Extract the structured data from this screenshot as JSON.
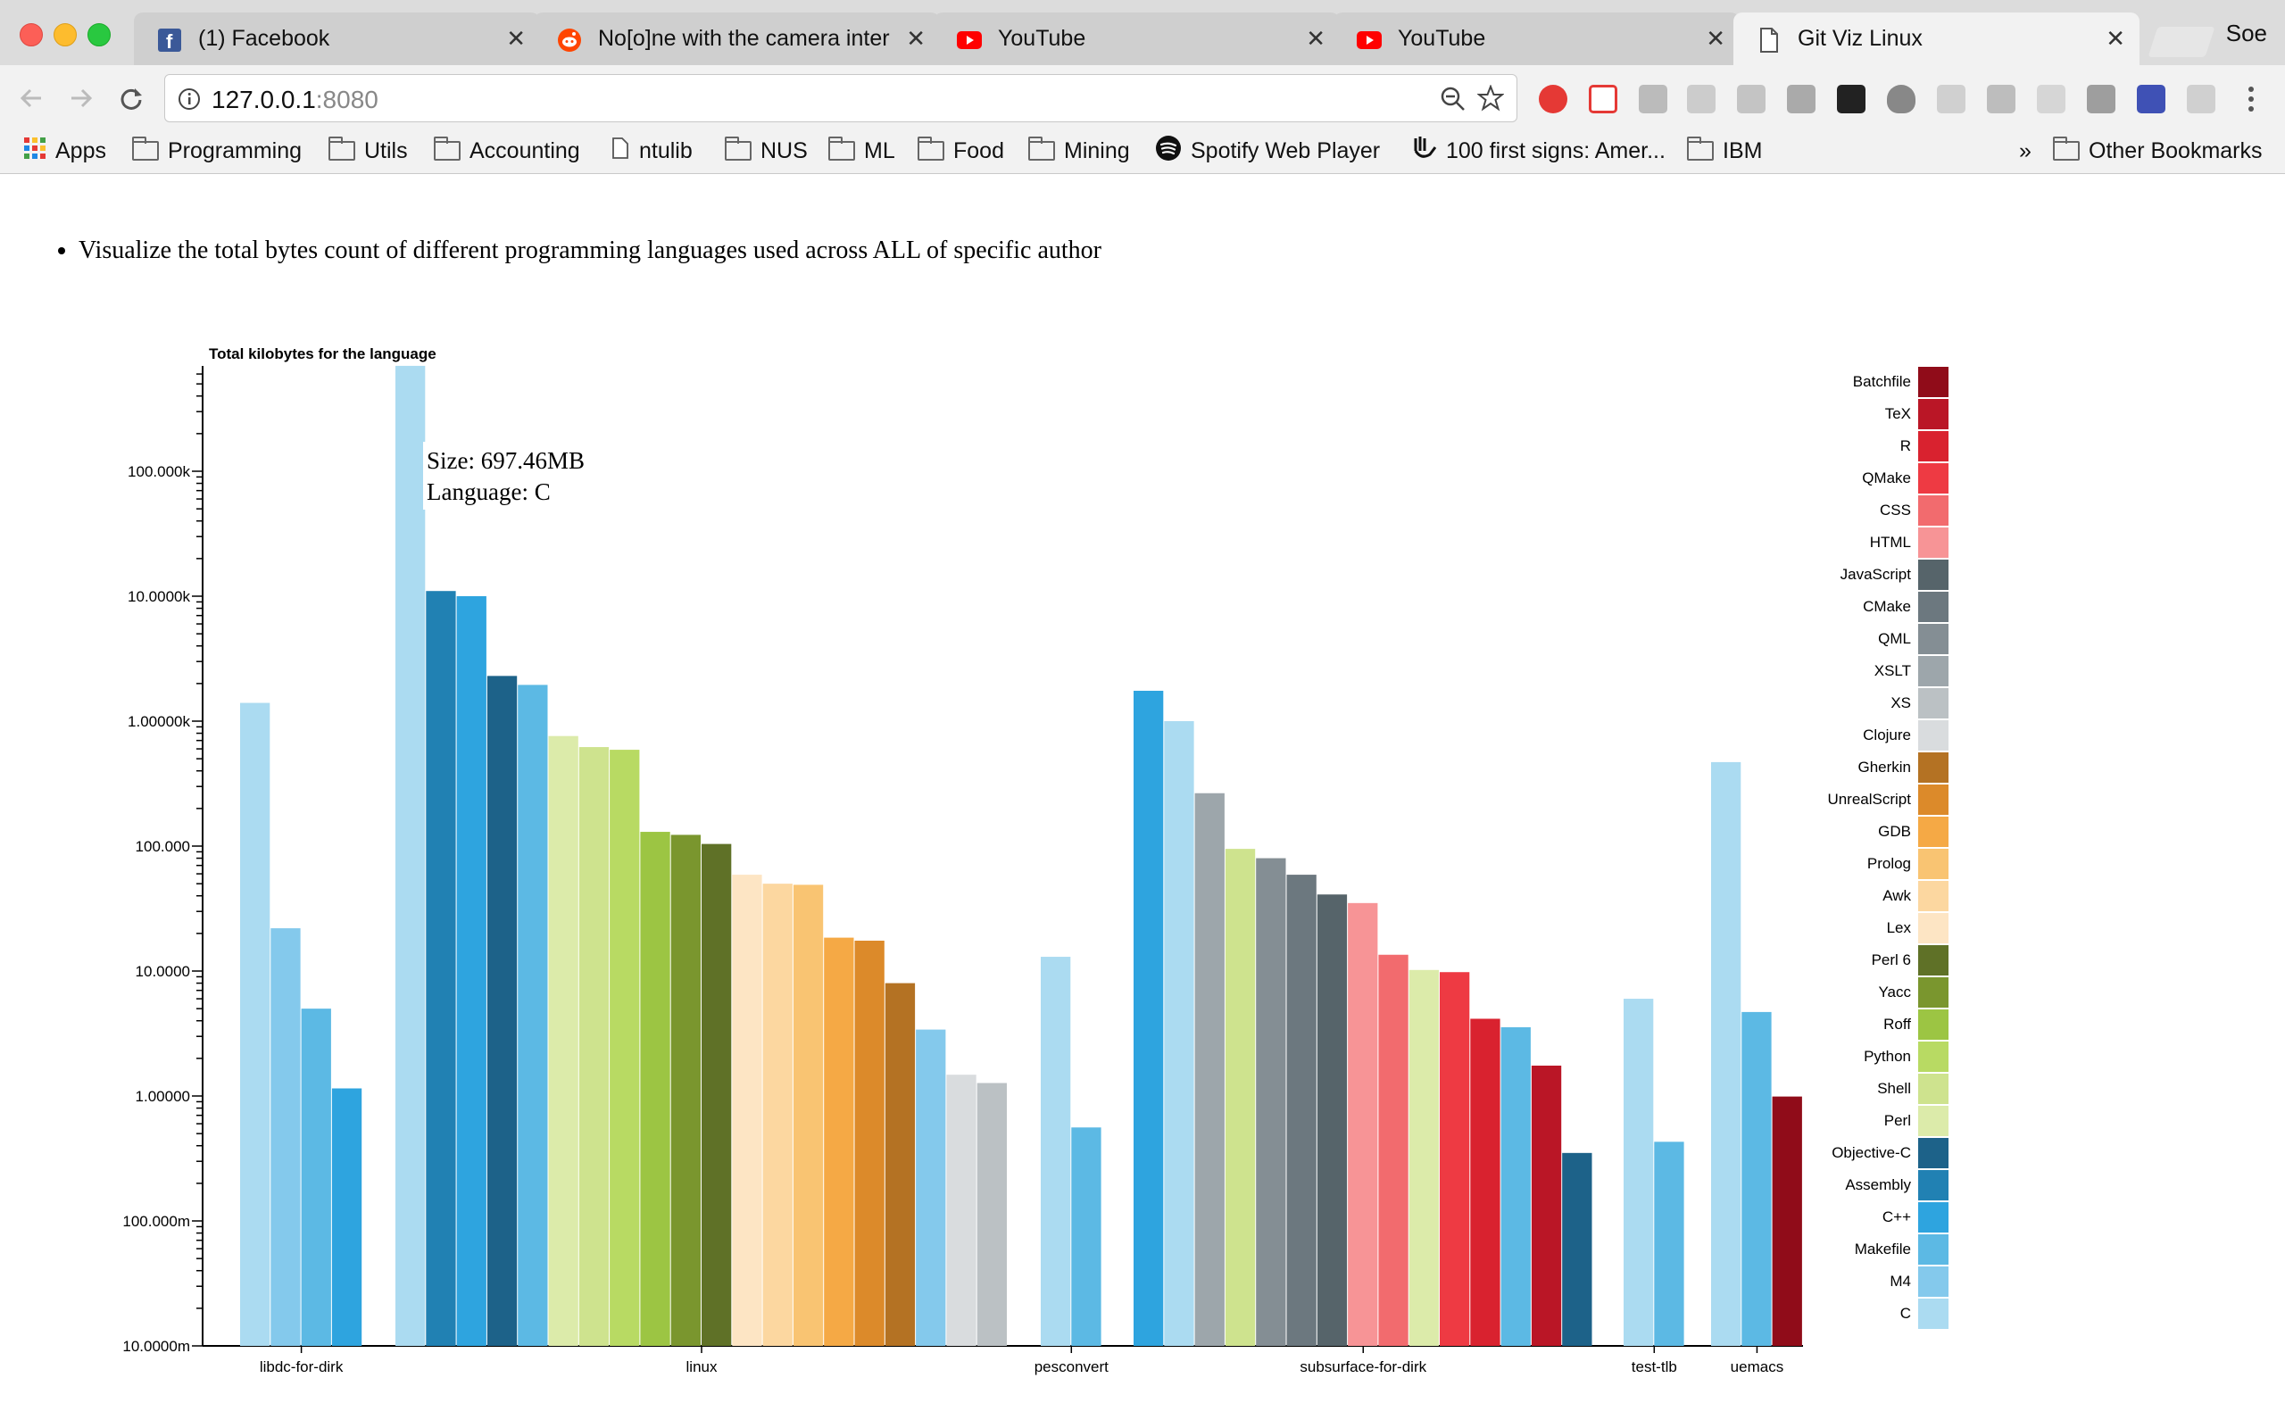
{
  "browser": {
    "tabs": [
      {
        "title": "(1) Facebook",
        "icon": "facebook-icon",
        "color": "#3b5998"
      },
      {
        "title": "No[o]ne with the camera inter",
        "icon": "reddit-icon",
        "color": "#ff4500"
      },
      {
        "title": "YouTube",
        "icon": "youtube-icon",
        "color": "#ff0000"
      },
      {
        "title": "YouTube",
        "icon": "youtube-icon",
        "color": "#ff0000"
      },
      {
        "title": "Git Viz Linux",
        "icon": "page-icon",
        "color": "#666666"
      }
    ],
    "active_tab": 4,
    "profile_name": "Soe",
    "url_host": "127.0.0.1",
    "url_port": ":8080",
    "bookmarks": [
      {
        "label": "Apps",
        "icon": "apps-grid-icon"
      },
      {
        "label": "Programming",
        "icon": "folder-icon"
      },
      {
        "label": "Utils",
        "icon": "folder-icon"
      },
      {
        "label": "Accounting",
        "icon": "folder-icon"
      },
      {
        "label": "ntulib",
        "icon": "page-icon"
      },
      {
        "label": "NUS",
        "icon": "folder-icon"
      },
      {
        "label": "ML",
        "icon": "folder-icon"
      },
      {
        "label": "Food",
        "icon": "folder-icon"
      },
      {
        "label": "Mining",
        "icon": "folder-icon"
      },
      {
        "label": "Spotify Web Player",
        "icon": "spotify-icon"
      },
      {
        "label": "100 first signs: Amer...",
        "icon": "sign-icon"
      },
      {
        "label": "IBM",
        "icon": "folder-icon"
      }
    ],
    "overflow_chevron": "»",
    "other_bookmarks": "Other Bookmarks"
  },
  "page": {
    "intro_bullet": "Visualize the total bytes count of different programming languages used across ALL of specific author"
  },
  "chart_data": {
    "type": "bar",
    "title": "Total kilobytes for the language",
    "ylabel": "Total kilobytes for the language",
    "y_scale": "log",
    "ylim": [
      0.01,
      1000000
    ],
    "y_tick_labels": [
      "10.0000m",
      "100.000m",
      "1.00000",
      "10.0000",
      "100.000",
      "1.00000k",
      "10.0000k",
      "100.000k"
    ],
    "y_tick_values": [
      0.01,
      0.1,
      1,
      10,
      100,
      1000,
      10000,
      100000
    ],
    "categories": [
      "libdc-for-dirk",
      "linux",
      "pesconvert",
      "subsurface-for-dirk",
      "test-tlb",
      "uemacs"
    ],
    "legend": [
      {
        "name": "Batchfile",
        "color": "#900c19"
      },
      {
        "name": "TeX",
        "color": "#ba1626"
      },
      {
        "name": "R",
        "color": "#d9222f"
      },
      {
        "name": "QMake",
        "color": "#ee3a43"
      },
      {
        "name": "CSS",
        "color": "#f26b6e"
      },
      {
        "name": "HTML",
        "color": "#f79496"
      },
      {
        "name": "JavaScript",
        "color": "#56646a"
      },
      {
        "name": "CMake",
        "color": "#6c787f"
      },
      {
        "name": "QML",
        "color": "#848e94"
      },
      {
        "name": "XSLT",
        "color": "#9da6ab"
      },
      {
        "name": "XS",
        "color": "#bbc1c4"
      },
      {
        "name": "Clojure",
        "color": "#d9dcde"
      },
      {
        "name": "Gherkin",
        "color": "#b47223"
      },
      {
        "name": "UnrealScript",
        "color": "#dc8a2a"
      },
      {
        "name": "GDB",
        "color": "#f5a945"
      },
      {
        "name": "Prolog",
        "color": "#f9c472"
      },
      {
        "name": "Awk",
        "color": "#fcd7a0"
      },
      {
        "name": "Lex",
        "color": "#fde5c4"
      },
      {
        "name": "Perl 6",
        "color": "#5f7127"
      },
      {
        "name": "Yacc",
        "color": "#7a962e"
      },
      {
        "name": "Roff",
        "color": "#9cc543"
      },
      {
        "name": "Python",
        "color": "#b8da63"
      },
      {
        "name": "Shell",
        "color": "#cee38e"
      },
      {
        "name": "Perl",
        "color": "#dcebaa"
      },
      {
        "name": "Objective-C",
        "color": "#1d6289"
      },
      {
        "name": "Assembly",
        "color": "#2181b3"
      },
      {
        "name": "C++",
        "color": "#2ea4df"
      },
      {
        "name": "Makefile",
        "color": "#5cb9e4"
      },
      {
        "name": "M4",
        "color": "#84c9ec"
      },
      {
        "name": "C",
        "color": "#abdbf1"
      }
    ],
    "series": [
      {
        "project": "libdc-for-dirk",
        "bars": [
          {
            "lang": "C",
            "value": 1400
          },
          {
            "lang": "M4",
            "value": 22
          },
          {
            "lang": "Makefile",
            "value": 5
          },
          {
            "lang": "C++",
            "value": 1.15
          }
        ]
      },
      {
        "project": "linux",
        "bars": [
          {
            "lang": "C",
            "value": 697460
          },
          {
            "lang": "Assembly",
            "value": 11000
          },
          {
            "lang": "C++",
            "value": 10000
          },
          {
            "lang": "Objective-C",
            "value": 2300
          },
          {
            "lang": "Makefile",
            "value": 1950
          },
          {
            "lang": "Perl",
            "value": 760
          },
          {
            "lang": "Shell",
            "value": 620
          },
          {
            "lang": "Python",
            "value": 590
          },
          {
            "lang": "Roff",
            "value": 130
          },
          {
            "lang": "Yacc",
            "value": 123
          },
          {
            "lang": "Perl 6",
            "value": 104
          },
          {
            "lang": "Lex",
            "value": 59
          },
          {
            "lang": "Awk",
            "value": 50
          },
          {
            "lang": "Prolog",
            "value": 49
          },
          {
            "lang": "GDB",
            "value": 18.5
          },
          {
            "lang": "UnrealScript",
            "value": 17.5
          },
          {
            "lang": "Gherkin",
            "value": 8
          },
          {
            "lang": "M4",
            "value": 3.4
          },
          {
            "lang": "Clojure",
            "value": 1.48
          },
          {
            "lang": "XS",
            "value": 1.27
          }
        ]
      },
      {
        "project": "pesconvert",
        "bars": [
          {
            "lang": "C",
            "value": 13
          },
          {
            "lang": "Makefile",
            "value": 0.56
          }
        ]
      },
      {
        "project": "subsurface-for-dirk",
        "bars": [
          {
            "lang": "C++",
            "value": 1750
          },
          {
            "lang": "C",
            "value": 1000
          },
          {
            "lang": "XSLT",
            "value": 265
          },
          {
            "lang": "Shell",
            "value": 95
          },
          {
            "lang": "QML",
            "value": 80
          },
          {
            "lang": "CMake",
            "value": 59
          },
          {
            "lang": "JavaScript",
            "value": 41
          },
          {
            "lang": "HTML",
            "value": 35
          },
          {
            "lang": "CSS",
            "value": 13.5
          },
          {
            "lang": "Perl",
            "value": 10.2
          },
          {
            "lang": "QMake",
            "value": 9.8
          },
          {
            "lang": "R",
            "value": 4.15
          },
          {
            "lang": "Makefile",
            "value": 3.55
          },
          {
            "lang": "TeX",
            "value": 1.75
          },
          {
            "lang": "Objective-C",
            "value": 0.35
          }
        ]
      },
      {
        "project": "test-tlb",
        "bars": [
          {
            "lang": "C",
            "value": 6
          },
          {
            "lang": "Makefile",
            "value": 0.43
          }
        ]
      },
      {
        "project": "uemacs",
        "bars": [
          {
            "lang": "C",
            "value": 470
          },
          {
            "lang": "Makefile",
            "value": 4.7
          },
          {
            "lang": "Batchfile",
            "value": 0.99
          }
        ]
      }
    ],
    "tooltip": {
      "size": "Size: 697.46MB",
      "language": "Language: C"
    },
    "legend_placement": "right",
    "grid": false
  }
}
